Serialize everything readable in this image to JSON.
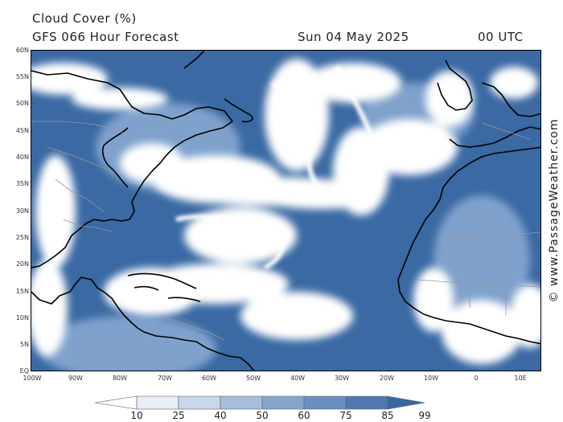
{
  "header": {
    "title": "Cloud Cover (%)",
    "subtitle": "GFS 066 Hour Forecast",
    "date": "Sun 04 May 2025",
    "time": "00 UTC"
  },
  "watermark": "© www.PassageWeather.com",
  "map": {
    "lat_labels": [
      "60N",
      "55N",
      "50N",
      "45N",
      "40N",
      "35N",
      "30N",
      "25N",
      "20N",
      "15N",
      "10N",
      "5N",
      "EQ"
    ],
    "lon_labels": [
      "100W",
      "90W",
      "80W",
      "70W",
      "60W",
      "50W",
      "40W",
      "30W",
      "20W",
      "10W",
      "0",
      "10E"
    ],
    "ocean_color": "#3a69a3",
    "cloud_color": "#ffffff",
    "coast_color": "#000000",
    "border_color": "#999999"
  },
  "colorbar": {
    "labels": [
      "10",
      "25",
      "40",
      "50",
      "60",
      "75",
      "85",
      "99"
    ],
    "colors": [
      "#ffffff",
      "#e8eef6",
      "#c9d7ea",
      "#a8bfdc",
      "#86a5cc",
      "#6a8fc0",
      "#4f78b1",
      "#3a66a3"
    ]
  }
}
